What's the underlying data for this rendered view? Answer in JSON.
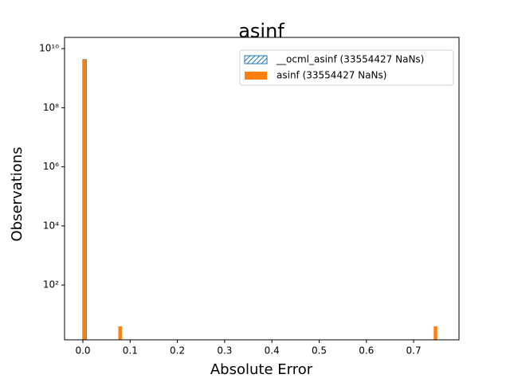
{
  "chart_data": {
    "type": "histogram",
    "title": "asinf",
    "xlabel": "Absolute Error",
    "ylabel": "Observations",
    "bins": [
      0,
      0.0075,
      0.015,
      0.0225,
      0.03,
      0.0375,
      0.045,
      0.0525,
      0.06,
      0.0675,
      0.075,
      0.0825,
      0.09,
      0.0975,
      0.105,
      0.1125,
      0.12,
      0.1275,
      0.135,
      0.1425,
      0.15,
      0.1575,
      0.165,
      0.1725,
      0.18,
      0.1875,
      0.195,
      0.2025,
      0.21,
      0.2175,
      0.225,
      0.2325,
      0.24,
      0.2475,
      0.255,
      0.2625,
      0.27,
      0.2775,
      0.285,
      0.2925,
      0.3,
      0.3075,
      0.315,
      0.3225,
      0.33,
      0.3375,
      0.345,
      0.3525,
      0.36,
      0.3675,
      0.375,
      0.3825,
      0.39,
      0.3975,
      0.405,
      0.4125,
      0.42,
      0.4275,
      0.435,
      0.4425,
      0.45,
      0.4575,
      0.465,
      0.4725,
      0.48,
      0.4875,
      0.495,
      0.5025,
      0.51,
      0.5175,
      0.525,
      0.5325,
      0.54,
      0.5475,
      0.555,
      0.5625,
      0.57,
      0.5775,
      0.585,
      0.5925,
      0.6,
      0.6075,
      0.615,
      0.6225,
      0.63,
      0.6375,
      0.645,
      0.6525,
      0.66,
      0.6675,
      0.675,
      0.6825,
      0.69,
      0.6975,
      0.705,
      0.7125,
      0.72,
      0.7275,
      0.735,
      0.7425,
      0.75
    ],
    "series": [
      {
        "name": "__ocml_asinf (33554427 NaNs)",
        "color": "#1f77b4",
        "hatch": true,
        "values": [
          4260000000,
          0,
          0,
          0,
          0,
          0,
          0,
          0,
          0,
          0,
          0,
          0,
          0,
          0,
          0,
          0,
          0,
          0,
          0,
          0,
          0,
          0,
          0,
          0,
          0,
          0,
          0,
          0,
          0,
          0,
          0,
          0,
          0,
          0,
          0,
          0,
          0,
          0,
          0,
          0,
          0,
          0,
          0,
          0,
          0,
          0,
          0,
          0,
          0,
          0,
          0,
          0,
          0,
          0,
          0,
          0,
          0,
          0,
          0,
          0,
          0,
          0,
          0,
          0,
          0,
          0,
          0,
          0,
          0,
          0,
          0,
          0,
          0,
          0,
          0,
          0,
          0,
          0,
          0,
          0,
          0,
          0,
          0,
          0,
          0,
          0,
          0,
          0,
          0,
          0,
          0,
          0,
          0,
          0,
          0,
          0,
          0,
          0,
          0,
          0
        ]
      },
      {
        "name": "asinf (33554427 NaNs)",
        "color": "#ff7f0e",
        "hatch": false,
        "values": [
          4260000000,
          0,
          0,
          0,
          0,
          0,
          0,
          0,
          0,
          0,
          4,
          0,
          0,
          0,
          0,
          0,
          0,
          0,
          0,
          0,
          0,
          0,
          0,
          0,
          0,
          0,
          0,
          0,
          0,
          0,
          0,
          0,
          0,
          0,
          0,
          0,
          0,
          0,
          0,
          0,
          0,
          0,
          0,
          0,
          0,
          0,
          0,
          0,
          0,
          0,
          0,
          0,
          0,
          0,
          0,
          0,
          0,
          0,
          0,
          0,
          0,
          0,
          0,
          0,
          0,
          0,
          0,
          0,
          0,
          0,
          0,
          0,
          0,
          0,
          0,
          0,
          0,
          0,
          0,
          0,
          0,
          0,
          0,
          0,
          0,
          0,
          0,
          0,
          0,
          0,
          0,
          0,
          0,
          0,
          0,
          0,
          0,
          0,
          0,
          4
        ]
      }
    ],
    "xlim": [
      -0.0388,
      0.796
    ],
    "xticks": [
      {
        "value": 0,
        "label": "0.0"
      },
      0.1,
      0.2,
      0.3,
      0.4,
      0.5,
      0.6,
      0.7
    ],
    "ylim": [
      1.4,
      24000000000
    ],
    "ylog": true,
    "yticks": [
      {
        "value": 100,
        "label": "10²"
      },
      {
        "value": 10000,
        "label": "10⁴"
      },
      {
        "value": 1000000,
        "label": "10⁶"
      },
      {
        "value": 100000000,
        "label": "10⁸"
      },
      {
        "value": 10000000000,
        "label": "10¹⁰"
      }
    ],
    "legend": "upper right"
  }
}
